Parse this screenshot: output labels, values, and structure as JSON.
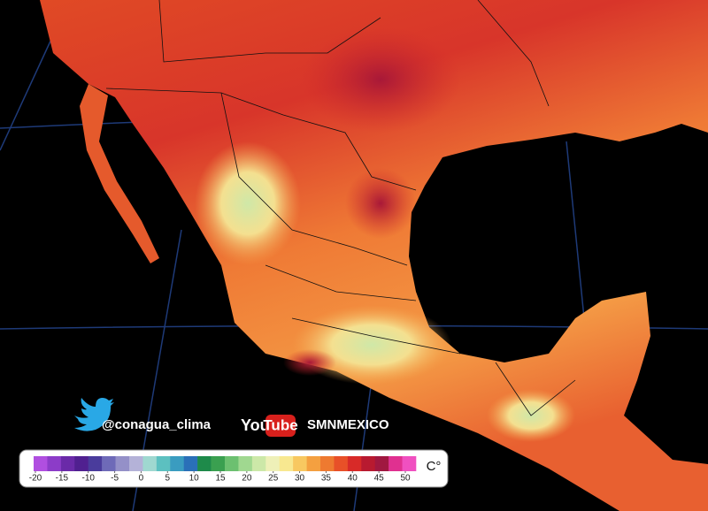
{
  "social": {
    "twitter": "@conagua_clima",
    "youtube_you": "You",
    "youtube_tube": "Tube",
    "channel": "SMNMEXICO"
  },
  "colorbar": {
    "unit": "C°",
    "lim": [
      -20,
      50
    ],
    "ticks": [
      -20,
      -15,
      -10,
      -5,
      0,
      5,
      10,
      15,
      20,
      25,
      30,
      35,
      40,
      45,
      50
    ],
    "colors": [
      "#b04fe0",
      "#8c3cc8",
      "#6a2aa8",
      "#502090",
      "#4a3c9c",
      "#6e6ab8",
      "#9490c8",
      "#b4b2d8",
      "#9fd8d0",
      "#5cc0c0",
      "#3a9cc0",
      "#2a70b8",
      "#1e8a4a",
      "#3aa050",
      "#6cc070",
      "#a0d890",
      "#cce8a8",
      "#eef0b8",
      "#f8e890",
      "#f8c860",
      "#f4a040",
      "#ee7a30",
      "#e85028",
      "#d82a28",
      "#b81a30",
      "#a01840",
      "#e03090",
      "#f050c0"
    ]
  }
}
